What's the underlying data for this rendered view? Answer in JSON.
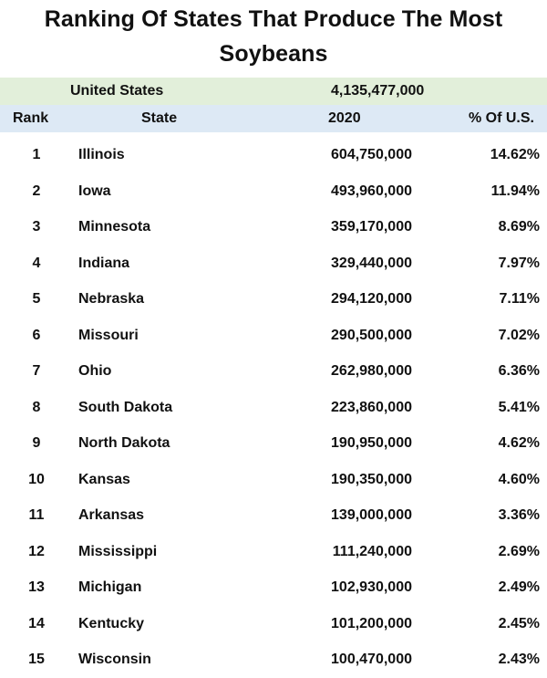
{
  "title": {
    "line1": "Ranking Of States That Produce The Most",
    "line2": "Soybeans"
  },
  "colors": {
    "us_row_background": "#e2efda",
    "header_row_background": "#dde9f5",
    "text": "#111111"
  },
  "summary": {
    "label": "United States",
    "value": "4,135,477,000"
  },
  "table": {
    "headers": {
      "rank": "Rank",
      "state": "State",
      "year": "2020",
      "pct": "% Of U.S."
    },
    "rows": [
      {
        "rank": "1",
        "state": "Illinois",
        "amount": "604,750,000",
        "pct": "14.62%"
      },
      {
        "rank": "2",
        "state": "Iowa",
        "amount": "493,960,000",
        "pct": "11.94%"
      },
      {
        "rank": "3",
        "state": "Minnesota",
        "amount": "359,170,000",
        "pct": "8.69%"
      },
      {
        "rank": "4",
        "state": "Indiana",
        "amount": "329,440,000",
        "pct": "7.97%"
      },
      {
        "rank": "5",
        "state": "Nebraska",
        "amount": "294,120,000",
        "pct": "7.11%"
      },
      {
        "rank": "6",
        "state": "Missouri",
        "amount": "290,500,000",
        "pct": "7.02%"
      },
      {
        "rank": "7",
        "state": "Ohio",
        "amount": "262,980,000",
        "pct": "6.36%"
      },
      {
        "rank": "8",
        "state": "South Dakota",
        "amount": "223,860,000",
        "pct": "5.41%"
      },
      {
        "rank": "9",
        "state": "North Dakota",
        "amount": "190,950,000",
        "pct": "4.62%"
      },
      {
        "rank": "10",
        "state": "Kansas",
        "amount": "190,350,000",
        "pct": "4.60%"
      },
      {
        "rank": "11",
        "state": "Arkansas",
        "amount": "139,000,000",
        "pct": "3.36%"
      },
      {
        "rank": "12",
        "state": "Mississippi",
        "amount": "111,240,000",
        "pct": "2.69%"
      },
      {
        "rank": "13",
        "state": "Michigan",
        "amount": "102,930,000",
        "pct": "2.49%"
      },
      {
        "rank": "14",
        "state": "Kentucky",
        "amount": "101,200,000",
        "pct": "2.45%"
      },
      {
        "rank": "15",
        "state": "Wisconsin",
        "amount": "100,470,000",
        "pct": "2.43%"
      }
    ]
  },
  "chart_data": {
    "type": "table",
    "title": "Ranking Of States That Produce The Most Soybeans",
    "columns": [
      "Rank",
      "State",
      "2020",
      "% Of U.S."
    ],
    "summary_row": {
      "label": "United States",
      "value": 4135477000
    },
    "rows": [
      [
        1,
        "Illinois",
        604750000,
        14.62
      ],
      [
        2,
        "Iowa",
        493960000,
        11.94
      ],
      [
        3,
        "Minnesota",
        359170000,
        8.69
      ],
      [
        4,
        "Indiana",
        329440000,
        7.97
      ],
      [
        5,
        "Nebraska",
        294120000,
        7.11
      ],
      [
        6,
        "Missouri",
        290500000,
        7.02
      ],
      [
        7,
        "Ohio",
        262980000,
        6.36
      ],
      [
        8,
        "South Dakota",
        223860000,
        5.41
      ],
      [
        9,
        "North Dakota",
        190950000,
        4.62
      ],
      [
        10,
        "Kansas",
        190350000,
        4.6
      ],
      [
        11,
        "Arkansas",
        139000000,
        3.36
      ],
      [
        12,
        "Mississippi",
        111240000,
        2.69
      ],
      [
        13,
        "Michigan",
        102930000,
        2.49
      ],
      [
        14,
        "Kentucky",
        101200000,
        2.45
      ],
      [
        15,
        "Wisconsin",
        100470000,
        2.43
      ]
    ]
  }
}
